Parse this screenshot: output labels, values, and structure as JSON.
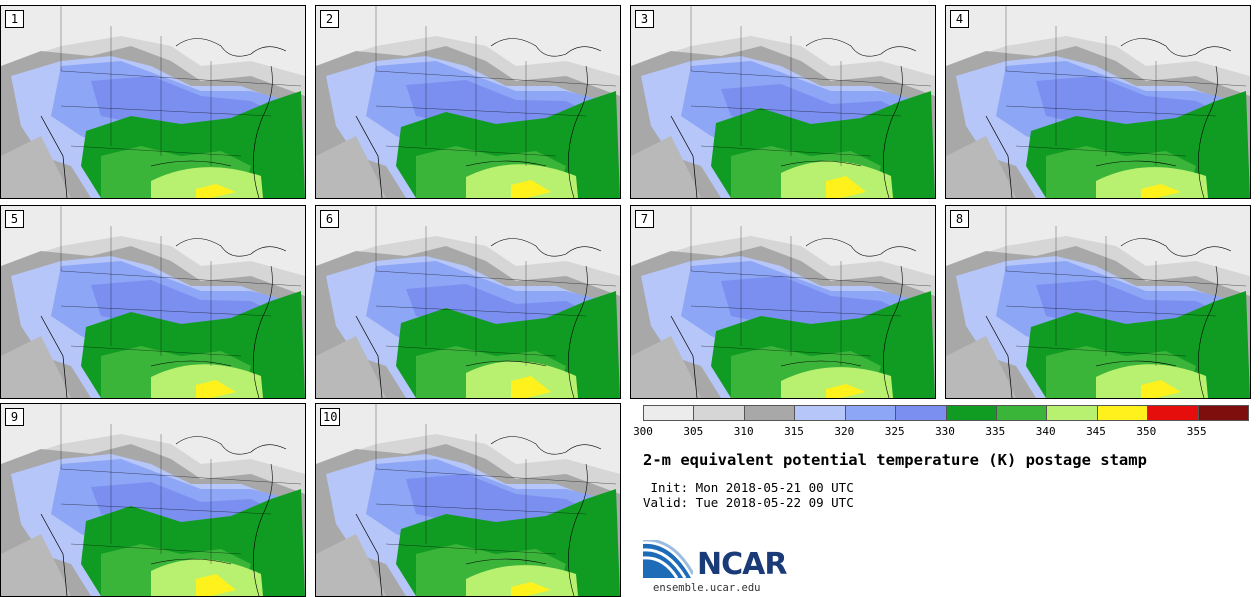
{
  "title": "2-m equivalent potential temperature (K) postage stamp",
  "init_line": " Init: Mon 2018-05-21 00 UTC",
  "valid_line": "Valid: Tue 2018-05-22 09 UTC",
  "panels": [
    "1",
    "2",
    "3",
    "4",
    "5",
    "6",
    "7",
    "8",
    "9",
    "10"
  ],
  "colorbar": {
    "colors": [
      "#ececec",
      "#d6d6d6",
      "#a8a8a8",
      "#b6c6f8",
      "#8ea6f6",
      "#7a8ff0",
      "#109c22",
      "#3bb43a",
      "#b8f070",
      "#fff21c",
      "#e60d0d",
      "#7e0d0d"
    ],
    "ticks": [
      "300",
      "305",
      "310",
      "315",
      "320",
      "325",
      "330",
      "335",
      "340",
      "345",
      "350",
      "355"
    ]
  },
  "logo": {
    "name": "NCAR",
    "url": "ensemble.ucar.edu"
  }
}
